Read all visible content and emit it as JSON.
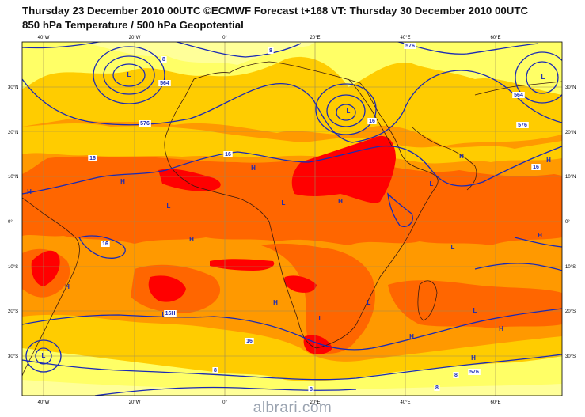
{
  "header": {
    "line1": "Thursday 23 December 2010 00UTC ©ECMWF Forecast t+168 VT: Thursday 30 December 2010 00UTC",
    "line2": "850 hPa Temperature / 500 hPa Geopotential"
  },
  "axes": {
    "lat_labels_left": [
      "30°N",
      "20°N",
      "10°N",
      "0°",
      "10°S",
      "20°S",
      "30°S"
    ],
    "lat_labels_right": [
      "30°N",
      "20°N",
      "10°N",
      "0°",
      "10°S",
      "20°S",
      "30°S"
    ],
    "lon_labels_top": [
      "40°W",
      "20°W",
      "0°",
      "20°E",
      "40°E",
      "60°E"
    ],
    "lon_labels_bottom": [
      "40°W",
      "20°W",
      "0°",
      "20°E",
      "40°E",
      "60°E"
    ]
  },
  "pressure_centers": [
    "L",
    "L",
    "L",
    "L",
    "H",
    "H",
    "L",
    "H",
    "H",
    "H",
    "L",
    "H",
    "L",
    "H",
    "H",
    "H",
    "L",
    "L",
    "H",
    "L",
    "H",
    "L",
    "H",
    "H",
    "L"
  ],
  "contour_labels": [
    "8",
    "8",
    "564",
    "576",
    "16",
    "16",
    "16",
    "16",
    "16",
    "16",
    "8",
    "8",
    "8",
    "576",
    "576",
    "576",
    "564",
    "16H",
    "8"
  ],
  "colors": {
    "frame_bg": "#f4e3a0",
    "band_yellow": "#ffff66",
    "band_gold": "#ffcc00",
    "band_orange": "#ff9900",
    "band_darkorange": "#ff6600",
    "band_red": "#ff0000",
    "contour_blue": "#1a2ab5",
    "coast": "#3a1a10"
  },
  "watermark": "albrari.com"
}
